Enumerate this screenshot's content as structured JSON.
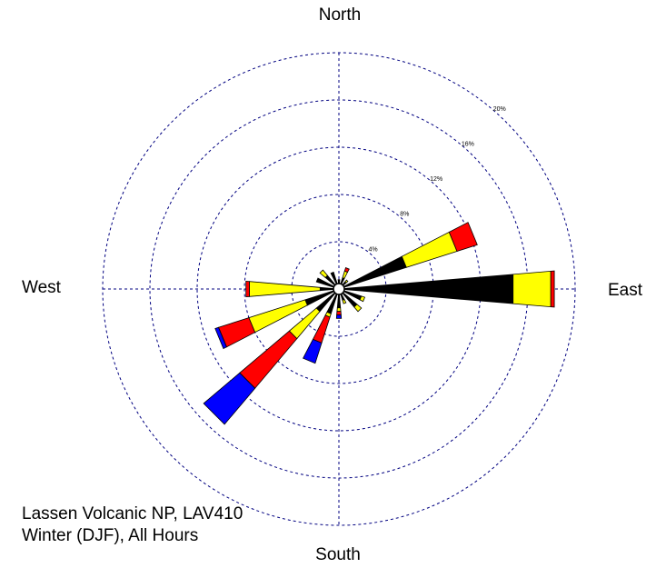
{
  "chart_data": {
    "type": "windrose",
    "directions": {
      "north": "North",
      "east": "East",
      "south": "South",
      "west": "West"
    },
    "ring_labels": [
      "4%",
      "8%",
      "12%",
      "16%",
      "20%"
    ],
    "ring_values": [
      4,
      8,
      12,
      16,
      20
    ],
    "rmax": 20,
    "colors": {
      "class1": "#000000",
      "class2": "#ffff00",
      "class3": "#ff0000",
      "class4": "#0000ff",
      "grid": "#000080"
    },
    "petals": [
      {
        "dir": 22.5,
        "segments": [
          1.0,
          0.6,
          0.3,
          0.0
        ]
      },
      {
        "dir": 45,
        "segments": [
          0.8,
          0.2,
          0.0,
          0.0
        ]
      },
      {
        "dir": 67.5,
        "segments": [
          6.0,
          4.5,
          1.8,
          0.0
        ]
      },
      {
        "dir": 90,
        "segments": [
          14.8,
          3.2,
          0.3,
          0.0
        ]
      },
      {
        "dir": 112.5,
        "segments": [
          2.0,
          0.3,
          0.0,
          0.0
        ]
      },
      {
        "dir": 135,
        "segments": [
          2.0,
          0.5,
          0.0,
          0.0
        ]
      },
      {
        "dir": 157.5,
        "segments": [
          1.0,
          0.3,
          0.0,
          0.0
        ]
      },
      {
        "dir": 180,
        "segments": [
          1.6,
          0.3,
          0.3,
          0.3
        ]
      },
      {
        "dir": 202.5,
        "segments": [
          2.2,
          0.3,
          2.3,
          1.8
        ]
      },
      {
        "dir": 225,
        "segments": [
          2.5,
          3.0,
          5.5,
          4.0
        ]
      },
      {
        "dir": 247.5,
        "segments": [
          3.0,
          5.0,
          2.7,
          0.3
        ]
      },
      {
        "dir": 270,
        "segments": [
          1.6,
          6.0,
          0.3,
          0.0
        ]
      },
      {
        "dir": 292.5,
        "segments": [
          2.0,
          0.0,
          0.0,
          0.0
        ]
      },
      {
        "dir": 315,
        "segments": [
          1.5,
          0.6,
          0.0,
          0.0
        ]
      },
      {
        "dir": 337.5,
        "segments": [
          1.5,
          0.0,
          0.0,
          0.0
        ]
      },
      {
        "dir": 0,
        "segments": [
          0.8,
          0.0,
          0.0,
          0.0
        ]
      }
    ]
  },
  "caption": {
    "line1": "Lassen Volcanic NP, LAV410",
    "line2": "Winter (DJF), All Hours"
  }
}
